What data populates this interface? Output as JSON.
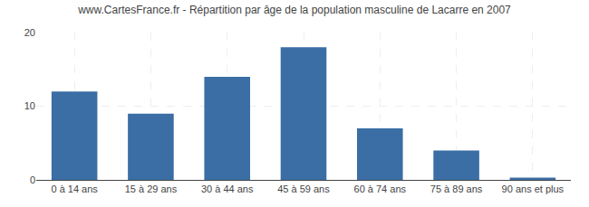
{
  "chart_data": {
    "type": "bar",
    "title": "www.CartesFrance.fr - Répartition par âge de la population masculine de Lacarre en 2007",
    "categories": [
      "0 à 14 ans",
      "15 à 29 ans",
      "30 à 44 ans",
      "45 à 59 ans",
      "60 à 74 ans",
      "75 à 89 ans",
      "90 ans et plus"
    ],
    "values": [
      12,
      9,
      14,
      18,
      7,
      4,
      0.3
    ],
    "color": "#3A6EA5",
    "ylim": [
      0,
      20
    ],
    "yticks": [
      0,
      10,
      20
    ],
    "grid": true
  }
}
